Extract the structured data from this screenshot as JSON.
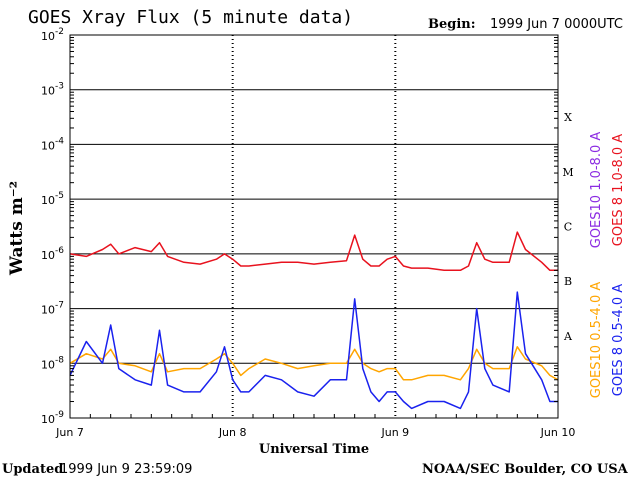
{
  "header": {
    "title": "GOES Xray Flux (5 minute data)",
    "begin_label": "Begin:",
    "begin_value": "1999 Jun 7 0000UTC"
  },
  "footer": {
    "updated_label": "Updated",
    "updated_value": "1999 Jun  9 23:59:09",
    "credit": "NOAA/SEC Boulder, CO USA"
  },
  "chart_data": {
    "type": "line",
    "title": "GOES Xray Flux (5 minute data)",
    "xlabel": "Universal Time",
    "ylabel": "Watts m⁻²",
    "y_scale": "log",
    "ylim": [
      1e-09,
      0.01
    ],
    "xlim_days": [
      0,
      3
    ],
    "x_tick_labels": [
      "Jun 7",
      "Jun 8",
      "Jun 9",
      "Jun 10"
    ],
    "y_tick_labels": [
      {
        "base": "10",
        "exp": "-9"
      },
      {
        "base": "10",
        "exp": "-8"
      },
      {
        "base": "10",
        "exp": "-7"
      },
      {
        "base": "10",
        "exp": "-6"
      },
      {
        "base": "10",
        "exp": "-5"
      },
      {
        "base": "10",
        "exp": "-4"
      },
      {
        "base": "10",
        "exp": "-3"
      },
      {
        "base": "10",
        "exp": "-2"
      }
    ],
    "flare_classes": [
      "A",
      "B",
      "C",
      "M",
      "X"
    ],
    "grid": true,
    "legend_position": "right, vertical",
    "colors": {
      "goes10_long": "#8b2be2",
      "goes8_long": "#e8121e",
      "goes10_short": "#ffa500",
      "goes8_short": "#1a22ee"
    },
    "series": [
      {
        "name": "GOES10 1.0-8.0 A",
        "color": "#8b2be2",
        "x": [
          0,
          3
        ],
        "y": [
          null,
          null
        ]
      },
      {
        "name": "GOES 8 1.0-8.0 A",
        "color": "#e8121e",
        "x": [
          0.0,
          0.1,
          0.2,
          0.25,
          0.3,
          0.4,
          0.5,
          0.55,
          0.6,
          0.7,
          0.8,
          0.9,
          0.95,
          1.0,
          1.05,
          1.1,
          1.2,
          1.3,
          1.4,
          1.5,
          1.6,
          1.7,
          1.75,
          1.8,
          1.85,
          1.9,
          1.95,
          2.0,
          2.05,
          2.1,
          2.2,
          2.3,
          2.4,
          2.45,
          2.5,
          2.55,
          2.6,
          2.7,
          2.75,
          2.8,
          2.9,
          2.95,
          3.0
        ],
        "y": [
          1e-06,
          9e-07,
          1.2e-06,
          1.5e-06,
          1e-06,
          1.3e-06,
          1.1e-06,
          1.6e-06,
          9e-07,
          7e-07,
          6.5e-07,
          8e-07,
          1e-06,
          8e-07,
          6e-07,
          6e-07,
          6.5e-07,
          7e-07,
          7e-07,
          6.5e-07,
          7e-07,
          7.5e-07,
          2.2e-06,
          8e-07,
          6e-07,
          6e-07,
          8e-07,
          9e-07,
          6e-07,
          5.5e-07,
          5.5e-07,
          5e-07,
          5e-07,
          6e-07,
          1.6e-06,
          8e-07,
          7e-07,
          7e-07,
          2.5e-06,
          1.2e-06,
          7e-07,
          5e-07,
          5e-07
        ]
      },
      {
        "name": "GOES10 0.5-4.0 A",
        "color": "#ffa500",
        "x": [
          0.0,
          0.1,
          0.2,
          0.25,
          0.3,
          0.4,
          0.5,
          0.55,
          0.6,
          0.7,
          0.8,
          0.9,
          0.95,
          1.0,
          1.05,
          1.1,
          1.2,
          1.3,
          1.4,
          1.5,
          1.6,
          1.7,
          1.75,
          1.8,
          1.85,
          1.9,
          1.95,
          2.0,
          2.05,
          2.1,
          2.2,
          2.3,
          2.4,
          2.45,
          2.5,
          2.55,
          2.6,
          2.7,
          2.75,
          2.8,
          2.9,
          2.95,
          3.0
        ],
        "y": [
          1e-08,
          1.5e-08,
          1.2e-08,
          1.8e-08,
          1e-08,
          9e-09,
          7e-09,
          1.5e-08,
          7e-09,
          8e-09,
          8e-09,
          1.2e-08,
          1.5e-08,
          1e-08,
          6e-09,
          8e-09,
          1.2e-08,
          1e-08,
          8e-09,
          9e-09,
          1e-08,
          1e-08,
          1.8e-08,
          1e-08,
          8e-09,
          7e-09,
          8e-09,
          8e-09,
          5e-09,
          5e-09,
          6e-09,
          6e-09,
          5e-09,
          8e-09,
          1.8e-08,
          1e-08,
          8e-09,
          8e-09,
          2e-08,
          1.2e-08,
          9e-09,
          6e-09,
          5e-09
        ]
      },
      {
        "name": "GOES 8 0.5-4.0 A",
        "color": "#1a22ee",
        "x": [
          0.0,
          0.1,
          0.2,
          0.25,
          0.3,
          0.4,
          0.5,
          0.55,
          0.6,
          0.7,
          0.8,
          0.9,
          0.95,
          1.0,
          1.05,
          1.1,
          1.2,
          1.3,
          1.4,
          1.5,
          1.6,
          1.7,
          1.75,
          1.8,
          1.85,
          1.9,
          1.95,
          2.0,
          2.05,
          2.1,
          2.2,
          2.3,
          2.4,
          2.45,
          2.5,
          2.55,
          2.6,
          2.7,
          2.75,
          2.8,
          2.9,
          2.95,
          3.0
        ],
        "y": [
          6e-09,
          2.5e-08,
          1e-08,
          5e-08,
          8e-09,
          5e-09,
          4e-09,
          4e-08,
          4e-09,
          3e-09,
          3e-09,
          7e-09,
          2e-08,
          5e-09,
          3e-09,
          3e-09,
          6e-09,
          5e-09,
          3e-09,
          2.5e-09,
          5e-09,
          5e-09,
          1.5e-07,
          8e-09,
          3e-09,
          2e-09,
          3e-09,
          3e-09,
          2e-09,
          1.5e-09,
          2e-09,
          2e-09,
          1.5e-09,
          3e-09,
          1e-07,
          8e-09,
          4e-09,
          3e-09,
          2e-07,
          1.5e-08,
          5e-09,
          2e-09,
          2e-09
        ]
      }
    ]
  }
}
